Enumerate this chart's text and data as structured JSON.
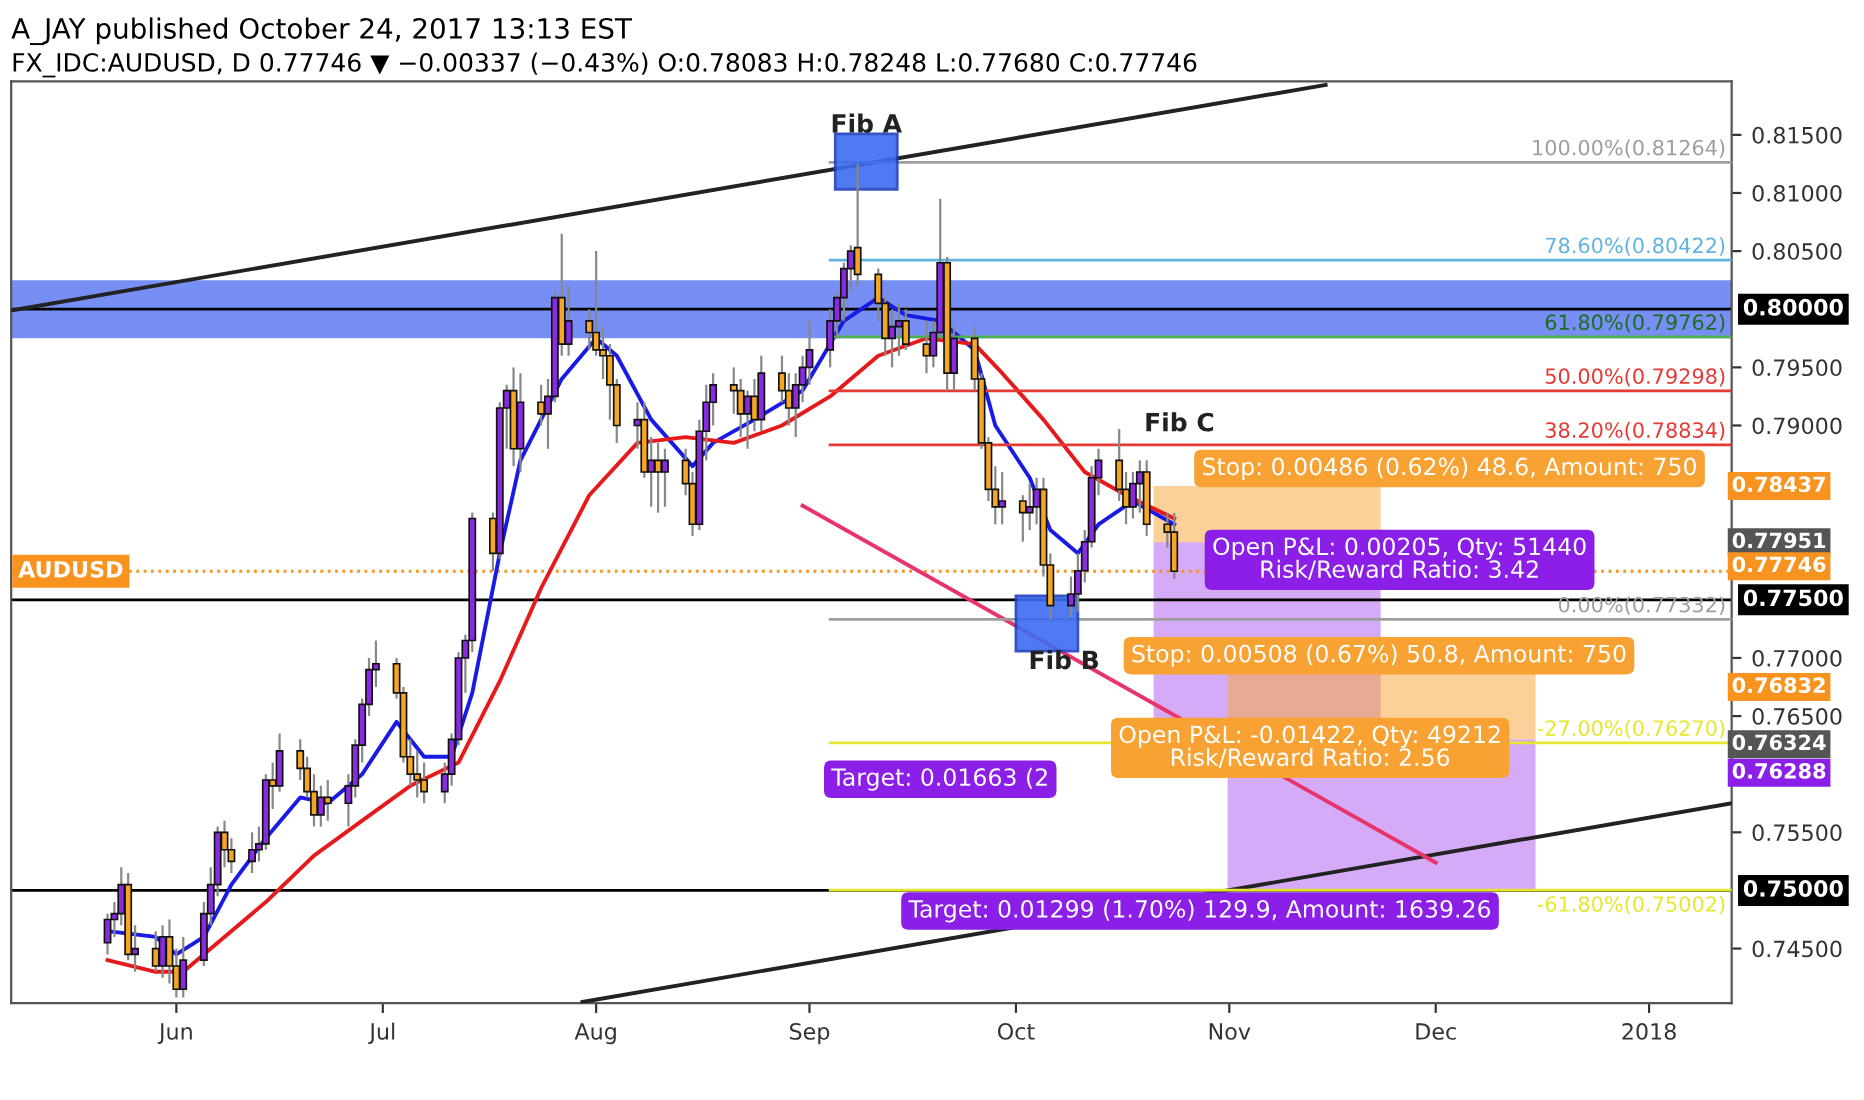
{
  "chart_data": {
    "type": "candlestick",
    "title": "A_JAY published October 24, 2017 13:13 EST",
    "subtitle": "FX_IDC:AUDUSD, D 0.77746 ▼ −0.00337 (−0.43%) O:0.78083 H:0.78248 L:0.77680 C:0.77746",
    "x": [
      "2017-05-22",
      "2017-05-23",
      "2017-05-24",
      "2017-05-25",
      "2017-05-26",
      "2017-05-29",
      "2017-05-30",
      "2017-05-31",
      "2017-06-01",
      "2017-06-02",
      "2017-06-05",
      "2017-06-06",
      "2017-06-07",
      "2017-06-08",
      "2017-06-09",
      "2017-06-12",
      "2017-06-13",
      "2017-06-14",
      "2017-06-15",
      "2017-06-16",
      "2017-06-19",
      "2017-06-20",
      "2017-06-21",
      "2017-06-22",
      "2017-06-23",
      "2017-06-26",
      "2017-06-27",
      "2017-06-28",
      "2017-06-29",
      "2017-06-30",
      "2017-07-03",
      "2017-07-04",
      "2017-07-05",
      "2017-07-06",
      "2017-07-07",
      "2017-07-10",
      "2017-07-11",
      "2017-07-12",
      "2017-07-13",
      "2017-07-14",
      "2017-07-17",
      "2017-07-18",
      "2017-07-19",
      "2017-07-20",
      "2017-07-21",
      "2017-07-24",
      "2017-07-25",
      "2017-07-26",
      "2017-07-27",
      "2017-07-28",
      "2017-07-31",
      "2017-08-01",
      "2017-08-02",
      "2017-08-03",
      "2017-08-04",
      "2017-08-07",
      "2017-08-08",
      "2017-08-09",
      "2017-08-10",
      "2017-08-11",
      "2017-08-14",
      "2017-08-15",
      "2017-08-16",
      "2017-08-17",
      "2017-08-18",
      "2017-08-21",
      "2017-08-22",
      "2017-08-23",
      "2017-08-24",
      "2017-08-25",
      "2017-08-28",
      "2017-08-29",
      "2017-08-30",
      "2017-08-31",
      "2017-09-01",
      "2017-09-04",
      "2017-09-05",
      "2017-09-06",
      "2017-09-07",
      "2017-09-08",
      "2017-09-11",
      "2017-09-12",
      "2017-09-13",
      "2017-09-14",
      "2017-09-15",
      "2017-09-18",
      "2017-09-19",
      "2017-09-20",
      "2017-09-21",
      "2017-09-22",
      "2017-09-25",
      "2017-09-26",
      "2017-09-27",
      "2017-09-28",
      "2017-09-29",
      "2017-10-02",
      "2017-10-03",
      "2017-10-04",
      "2017-10-05",
      "2017-10-06",
      "2017-10-09",
      "2017-10-10",
      "2017-10-11",
      "2017-10-12",
      "2017-10-13",
      "2017-10-16",
      "2017-10-17",
      "2017-10-18",
      "2017-10-19",
      "2017-10-20",
      "2017-10-23",
      "2017-10-24"
    ],
    "ohlc": [
      [
        0.7455,
        0.748,
        0.7445,
        0.7475
      ],
      [
        0.7475,
        0.749,
        0.746,
        0.748
      ],
      [
        0.748,
        0.752,
        0.747,
        0.7505
      ],
      [
        0.7505,
        0.7515,
        0.744,
        0.7445
      ],
      [
        0.7445,
        0.747,
        0.743,
        0.745
      ],
      [
        0.745,
        0.7465,
        0.743,
        0.7435
      ],
      [
        0.7435,
        0.747,
        0.7425,
        0.746
      ],
      [
        0.746,
        0.7475,
        0.742,
        0.7435
      ],
      [
        0.7435,
        0.745,
        0.7408,
        0.7415
      ],
      [
        0.7415,
        0.746,
        0.7408,
        0.744
      ],
      [
        0.744,
        0.749,
        0.7435,
        0.748
      ],
      [
        0.748,
        0.752,
        0.747,
        0.7505
      ],
      [
        0.7505,
        0.7555,
        0.7495,
        0.755
      ],
      [
        0.755,
        0.756,
        0.752,
        0.7535
      ],
      [
        0.7535,
        0.7545,
        0.7515,
        0.7525
      ],
      [
        0.7525,
        0.755,
        0.7515,
        0.7535
      ],
      [
        0.7535,
        0.7555,
        0.7525,
        0.754
      ],
      [
        0.754,
        0.76,
        0.7535,
        0.7595
      ],
      [
        0.7595,
        0.761,
        0.757,
        0.759
      ],
      [
        0.759,
        0.7635,
        0.7585,
        0.762
      ],
      [
        0.762,
        0.763,
        0.7595,
        0.7605
      ],
      [
        0.7605,
        0.7615,
        0.758,
        0.7585
      ],
      [
        0.7585,
        0.76,
        0.7555,
        0.7565
      ],
      [
        0.7565,
        0.759,
        0.7555,
        0.758
      ],
      [
        0.758,
        0.7595,
        0.756,
        0.7575
      ],
      [
        0.7575,
        0.76,
        0.7555,
        0.759
      ],
      [
        0.759,
        0.763,
        0.758,
        0.7625
      ],
      [
        0.7625,
        0.7665,
        0.761,
        0.766
      ],
      [
        0.766,
        0.77,
        0.765,
        0.769
      ],
      [
        0.769,
        0.7715,
        0.7675,
        0.7695
      ],
      [
        0.7695,
        0.77,
        0.7665,
        0.767
      ],
      [
        0.767,
        0.7675,
        0.761,
        0.7615
      ],
      [
        0.7615,
        0.763,
        0.759,
        0.76
      ],
      [
        0.76,
        0.762,
        0.758,
        0.7595
      ],
      [
        0.7595,
        0.761,
        0.7575,
        0.7585
      ],
      [
        0.7585,
        0.761,
        0.7575,
        0.76
      ],
      [
        0.76,
        0.7635,
        0.759,
        0.763
      ],
      [
        0.763,
        0.7705,
        0.7625,
        0.77
      ],
      [
        0.77,
        0.772,
        0.767,
        0.7715
      ],
      [
        0.7715,
        0.7825,
        0.7705,
        0.782
      ],
      [
        0.782,
        0.7825,
        0.7775,
        0.779
      ],
      [
        0.779,
        0.792,
        0.7785,
        0.7915
      ],
      [
        0.7915,
        0.7935,
        0.788,
        0.793
      ],
      [
        0.793,
        0.795,
        0.7865,
        0.788
      ],
      [
        0.788,
        0.7945,
        0.786,
        0.792
      ],
      [
        0.792,
        0.7935,
        0.79,
        0.791
      ],
      [
        0.791,
        0.794,
        0.788,
        0.7925
      ],
      [
        0.7925,
        0.8015,
        0.792,
        0.801
      ],
      [
        0.801,
        0.8065,
        0.796,
        0.797
      ],
      [
        0.797,
        0.802,
        0.796,
        0.799
      ],
      [
        0.799,
        0.8,
        0.7965,
        0.798
      ],
      [
        0.798,
        0.805,
        0.796,
        0.7965
      ],
      [
        0.7965,
        0.7985,
        0.794,
        0.796
      ],
      [
        0.796,
        0.797,
        0.7905,
        0.7935
      ],
      [
        0.7935,
        0.794,
        0.7885,
        0.79
      ],
      [
        0.79,
        0.792,
        0.788,
        0.7905
      ],
      [
        0.7905,
        0.792,
        0.7855,
        0.786
      ],
      [
        0.786,
        0.789,
        0.783,
        0.787
      ],
      [
        0.787,
        0.7885,
        0.7825,
        0.786
      ],
      [
        0.786,
        0.788,
        0.783,
        0.787
      ],
      [
        0.787,
        0.788,
        0.784,
        0.785
      ],
      [
        0.785,
        0.786,
        0.7805,
        0.7815
      ],
      [
        0.7815,
        0.7905,
        0.781,
        0.7895
      ],
      [
        0.7895,
        0.7935,
        0.787,
        0.792
      ],
      [
        0.792,
        0.7945,
        0.79,
        0.7935
      ],
      [
        0.7935,
        0.795,
        0.791,
        0.793
      ],
      [
        0.793,
        0.794,
        0.789,
        0.791
      ],
      [
        0.791,
        0.793,
        0.788,
        0.7925
      ],
      [
        0.7925,
        0.794,
        0.7895,
        0.7905
      ],
      [
        0.7905,
        0.796,
        0.7895,
        0.7945
      ],
      [
        0.7945,
        0.796,
        0.792,
        0.793
      ],
      [
        0.793,
        0.7945,
        0.79,
        0.7915
      ],
      [
        0.7915,
        0.7945,
        0.789,
        0.7935
      ],
      [
        0.7935,
        0.796,
        0.792,
        0.795
      ],
      [
        0.795,
        0.799,
        0.7935,
        0.7965
      ],
      [
        0.7965,
        0.8,
        0.795,
        0.799
      ],
      [
        0.799,
        0.8015,
        0.7975,
        0.801
      ],
      [
        0.801,
        0.804,
        0.799,
        0.8035
      ],
      [
        0.8035,
        0.8055,
        0.8015,
        0.805
      ],
      [
        0.8053,
        0.8125,
        0.802,
        0.803
      ],
      [
        0.803,
        0.8035,
        0.799,
        0.8005
      ],
      [
        0.8005,
        0.801,
        0.796,
        0.7975
      ],
      [
        0.7975,
        0.8,
        0.795,
        0.7985
      ],
      [
        0.7985,
        0.8005,
        0.796,
        0.799
      ],
      [
        0.799,
        0.8,
        0.7965,
        0.797
      ],
      [
        0.797,
        0.799,
        0.7945,
        0.796
      ],
      [
        0.796,
        0.799,
        0.795,
        0.798
      ],
      [
        0.798,
        0.8095,
        0.7975,
        0.804
      ],
      [
        0.804,
        0.8045,
        0.793,
        0.7945
      ],
      [
        0.7945,
        0.7985,
        0.793,
        0.7975
      ],
      [
        0.7975,
        0.7985,
        0.793,
        0.794
      ],
      [
        0.794,
        0.7945,
        0.788,
        0.7885
      ],
      [
        0.7885,
        0.789,
        0.7835,
        0.7845
      ],
      [
        0.7845,
        0.7865,
        0.7815,
        0.783
      ],
      [
        0.783,
        0.786,
        0.7815,
        0.7835
      ],
      [
        0.7835,
        0.784,
        0.78,
        0.7825
      ],
      [
        0.7825,
        0.785,
        0.781,
        0.783
      ],
      [
        0.783,
        0.7855,
        0.7815,
        0.7845
      ],
      [
        0.7845,
        0.7855,
        0.777,
        0.778
      ],
      [
        0.778,
        0.779,
        0.7733,
        0.7745
      ],
      [
        0.7745,
        0.777,
        0.7735,
        0.7755
      ],
      [
        0.7755,
        0.779,
        0.774,
        0.7775
      ],
      [
        0.7775,
        0.781,
        0.7765,
        0.78
      ],
      [
        0.78,
        0.7865,
        0.7795,
        0.7855
      ],
      [
        0.7855,
        0.788,
        0.784,
        0.787
      ],
      [
        0.787,
        0.7897,
        0.7835,
        0.7845
      ],
      [
        0.7845,
        0.786,
        0.7815,
        0.783
      ],
      [
        0.783,
        0.786,
        0.782,
        0.785
      ],
      [
        0.785,
        0.787,
        0.7825,
        0.786
      ],
      [
        0.786,
        0.787,
        0.7805,
        0.7815
      ],
      [
        0.7815,
        0.7825,
        0.7795,
        0.78083
      ],
      [
        0.78083,
        0.78248,
        0.7768,
        0.77746
      ]
    ],
    "series": [
      {
        "type": "line",
        "color": "#1a1ae6",
        "x": [
          "2017-05-22",
          "2017-05-29",
          "2017-06-01",
          "2017-06-05",
          "2017-06-09",
          "2017-06-14",
          "2017-06-19",
          "2017-06-23",
          "2017-06-28",
          "2017-07-03",
          "2017-07-07",
          "2017-07-11",
          "2017-07-14",
          "2017-07-18",
          "2017-07-21",
          "2017-07-27",
          "2017-08-01",
          "2017-08-04",
          "2017-08-09",
          "2017-08-15",
          "2017-08-18",
          "2017-08-24",
          "2017-08-31",
          "2017-09-06",
          "2017-09-11",
          "2017-09-15",
          "2017-09-20",
          "2017-09-25",
          "2017-09-28",
          "2017-10-03",
          "2017-10-06",
          "2017-10-10",
          "2017-10-13",
          "2017-10-18",
          "2017-10-24"
        ],
        "values": [
          0.7465,
          0.746,
          0.7445,
          0.746,
          0.7505,
          0.7545,
          0.758,
          0.7575,
          0.76,
          0.7645,
          0.7615,
          0.7615,
          0.767,
          0.779,
          0.787,
          0.794,
          0.7975,
          0.796,
          0.7905,
          0.7865,
          0.7885,
          0.7905,
          0.793,
          0.799,
          0.801,
          0.7995,
          0.799,
          0.7965,
          0.79,
          0.7855,
          0.781,
          0.779,
          0.7815,
          0.7835,
          0.7815
        ]
      },
      {
        "type": "line",
        "color": "#e61a1a",
        "x": [
          "2017-05-22",
          "2017-05-29",
          "2017-06-02",
          "2017-06-07",
          "2017-06-14",
          "2017-06-21",
          "2017-06-28",
          "2017-07-05",
          "2017-07-12",
          "2017-07-18",
          "2017-07-24",
          "2017-07-31",
          "2017-08-07",
          "2017-08-14",
          "2017-08-21",
          "2017-08-28",
          "2017-09-04",
          "2017-09-11",
          "2017-09-18",
          "2017-09-25",
          "2017-09-29",
          "2017-10-05",
          "2017-10-11",
          "2017-10-17",
          "2017-10-24"
        ],
        "values": [
          0.744,
          0.743,
          0.743,
          0.7455,
          0.749,
          0.753,
          0.756,
          0.759,
          0.761,
          0.768,
          0.776,
          0.784,
          0.7885,
          0.789,
          0.7885,
          0.79,
          0.7925,
          0.796,
          0.7975,
          0.797,
          0.7945,
          0.7905,
          0.786,
          0.784,
          0.782
        ]
      },
      {
        "type": "line",
        "color": "#222222",
        "x": [
          "2017-05-08",
          "2017-11-15"
        ],
        "values": [
          0.7999,
          0.8193
        ]
      },
      {
        "type": "line",
        "color": "#222222",
        "x": [
          "2017-07-30",
          "2018-01-13"
        ],
        "values": [
          0.7404,
          0.7575
        ]
      },
      {
        "type": "line",
        "color": "#e8336b",
        "x": [
          "2017-08-31",
          "2017-12-01"
        ],
        "values": [
          0.7831,
          0.7524
        ]
      },
      {
        "type": "line",
        "name": "100.00%(0.81264)",
        "color": "#9e9e9e",
        "x": [
          "2017-09-04",
          "2018-01-13"
        ],
        "values": [
          0.81264,
          0.81264
        ]
      },
      {
        "type": "line",
        "name": "78.60%(0.80422)",
        "color": "#5fb3e0",
        "x": [
          "2017-09-04",
          "2018-01-13"
        ],
        "values": [
          0.80422,
          0.80422
        ]
      },
      {
        "type": "line",
        "name": "61.80%(0.79762)",
        "color": "#4caf50",
        "x": [
          "2017-09-04",
          "2018-01-13"
        ],
        "values": [
          0.79762,
          0.79762
        ]
      },
      {
        "type": "line",
        "name": "50.00%(0.79298)",
        "color": "#e53935",
        "x": [
          "2017-09-04",
          "2018-01-13"
        ],
        "values": [
          0.79298,
          0.79298
        ]
      },
      {
        "type": "line",
        "name": "38.20%(0.78834)",
        "color": "#e53935",
        "x": [
          "2017-09-04",
          "2018-01-13"
        ],
        "values": [
          0.78834,
          0.78834
        ]
      },
      {
        "type": "line",
        "name": "0.00%(0.77332)",
        "color": "#9e9e9e",
        "x": [
          "2017-09-04",
          "2018-01-13"
        ],
        "values": [
          0.77332,
          0.77332
        ]
      },
      {
        "type": "line",
        "name": "-27.00%(0.76270)",
        "color": "#e6e62e",
        "x": [
          "2017-09-04",
          "2018-01-13"
        ],
        "values": [
          0.7627,
          0.7627
        ]
      },
      {
        "type": "line",
        "name": "-61.80%(0.75002)",
        "color": "#e6e62e",
        "x": [
          "2017-09-04",
          "2018-01-13"
        ],
        "values": [
          0.75002,
          0.75002
        ]
      }
    ],
    "bands": [
      {
        "axis": "y",
        "from": 0.7975,
        "to": 0.8025,
        "color": "#3d5ff0"
      }
    ],
    "ref_lines": [
      {
        "axis": "y",
        "value": 0.8,
        "label": "0.80000",
        "color": "#000000",
        "line_style": "solid"
      },
      {
        "axis": "y",
        "value": 0.775,
        "label": "0.77500",
        "color": "#000000",
        "line_style": "solid"
      },
      {
        "axis": "y",
        "value": 0.75,
        "label": "0.75000",
        "color": "#000000",
        "line_style": "solid"
      },
      {
        "axis": "y",
        "value": 0.77746,
        "label": "AUDUSD",
        "color": "#f7931e",
        "line_style": "dotted"
      }
    ],
    "annotations": [
      "Stop: 0.00486 (0.62%) 48.6, Amount: 750",
      "Open P&L: 0.00205, Qty: 51440\nRisk/Reward Ratio: 3.42",
      "Target: 0.01663 (2",
      "Stop: 0.00508 (0.67%) 50.8, Amount: 750",
      "Open P&L: -0.01422, Qty: 49212\nRisk/Reward Ratio: 2.56",
      "Target: 0.01299 (1.70%) 129.9, Amount: 1639.26",
      "Fib A",
      "Fib B",
      "Fib C",
      "0.78437",
      "0.77951",
      "0.77746",
      "0.76832",
      "0.76324",
      "0.76288"
    ],
    "xlim": [
      "2017-05-08",
      "2018-01-13"
    ],
    "xticks": [
      {
        "value": "2017-06-01",
        "label": "Jun"
      },
      {
        "value": "2017-07-01",
        "label": "Jul"
      },
      {
        "value": "2017-08-01",
        "label": "Aug"
      },
      {
        "value": "2017-09-01",
        "label": "Sep"
      },
      {
        "value": "2017-10-01",
        "label": "Oct"
      },
      {
        "value": "2017-11-01",
        "label": "Nov"
      },
      {
        "value": "2017-12-01",
        "label": "Dec"
      },
      {
        "value": "2018-01-01",
        "label": "2018"
      }
    ],
    "ylim": [
      0.7403,
      0.8196
    ],
    "yticks": [
      {
        "value": 0.745,
        "label": "0.74500"
      },
      {
        "value": 0.755,
        "label": "0.75500"
      },
      {
        "value": 0.765,
        "label": "0.76500"
      },
      {
        "value": 0.77,
        "label": "0.77000"
      },
      {
        "value": 0.79,
        "label": "0.79000"
      },
      {
        "value": 0.795,
        "label": "0.79500"
      },
      {
        "value": 0.805,
        "label": "0.80500"
      },
      {
        "value": 0.81,
        "label": "0.81000"
      },
      {
        "value": 0.815,
        "label": "0.81500"
      }
    ],
    "grid": false,
    "legend": "right"
  }
}
